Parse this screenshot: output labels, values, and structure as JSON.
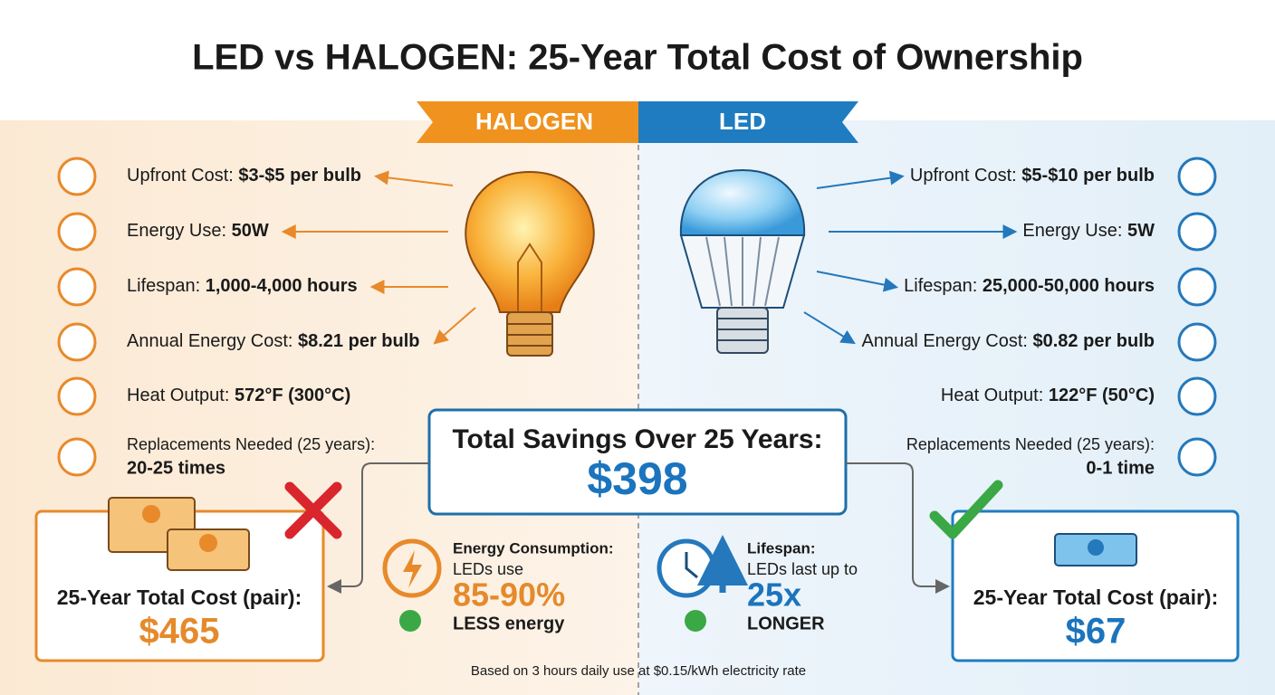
{
  "title": "LED vs HALOGEN: 25-Year Total Cost of Ownership",
  "halogen": {
    "banner": "HALOGEN",
    "specs": [
      {
        "label": "Upfront Cost:",
        "value": "$3-$5 per bulb"
      },
      {
        "label": "Energy Use:",
        "value": "50W"
      },
      {
        "label": "Lifespan:",
        "value": "1,000-4,000 hours"
      },
      {
        "label": "Annual Energy Cost:",
        "value": "$8.21 per bulb"
      },
      {
        "label": "Heat Output:",
        "value": "572°F (300°C)"
      },
      {
        "label": "Replacements Needed (25 years):",
        "value": "20-25 times"
      }
    ],
    "total": {
      "label": "25-Year Total Cost (pair):",
      "value": "$465"
    }
  },
  "led": {
    "banner": "LED",
    "specs": [
      {
        "label": "Upfront Cost:",
        "value": "$5-$10 per bulb"
      },
      {
        "label": "Energy Use:",
        "value": "5W"
      },
      {
        "label": "Lifespan:",
        "value": "25,000-50,000 hours"
      },
      {
        "label": "Annual Energy Cost:",
        "value": "$0.82 per bulb"
      },
      {
        "label": "Heat Output:",
        "value": "122°F (50°C)"
      },
      {
        "label": "Replacements Needed (25 years):",
        "value": "0-1 time"
      }
    ],
    "total": {
      "label": "25-Year Total Cost (pair):",
      "value": "$67"
    }
  },
  "savings": {
    "label": "Total Savings Over 25 Years:",
    "value": "$398"
  },
  "facts": [
    {
      "title": "Energy Consumption:",
      "line1": "LEDs use",
      "highlight": "85-90%",
      "line2": "LESS energy"
    },
    {
      "title": "Lifespan:",
      "line1": "LEDs last up to",
      "highlight": "25x",
      "line2": "LONGER"
    }
  ],
  "footnote": "Based on 3 hours daily use at $0.15/kWh electricity rate"
}
